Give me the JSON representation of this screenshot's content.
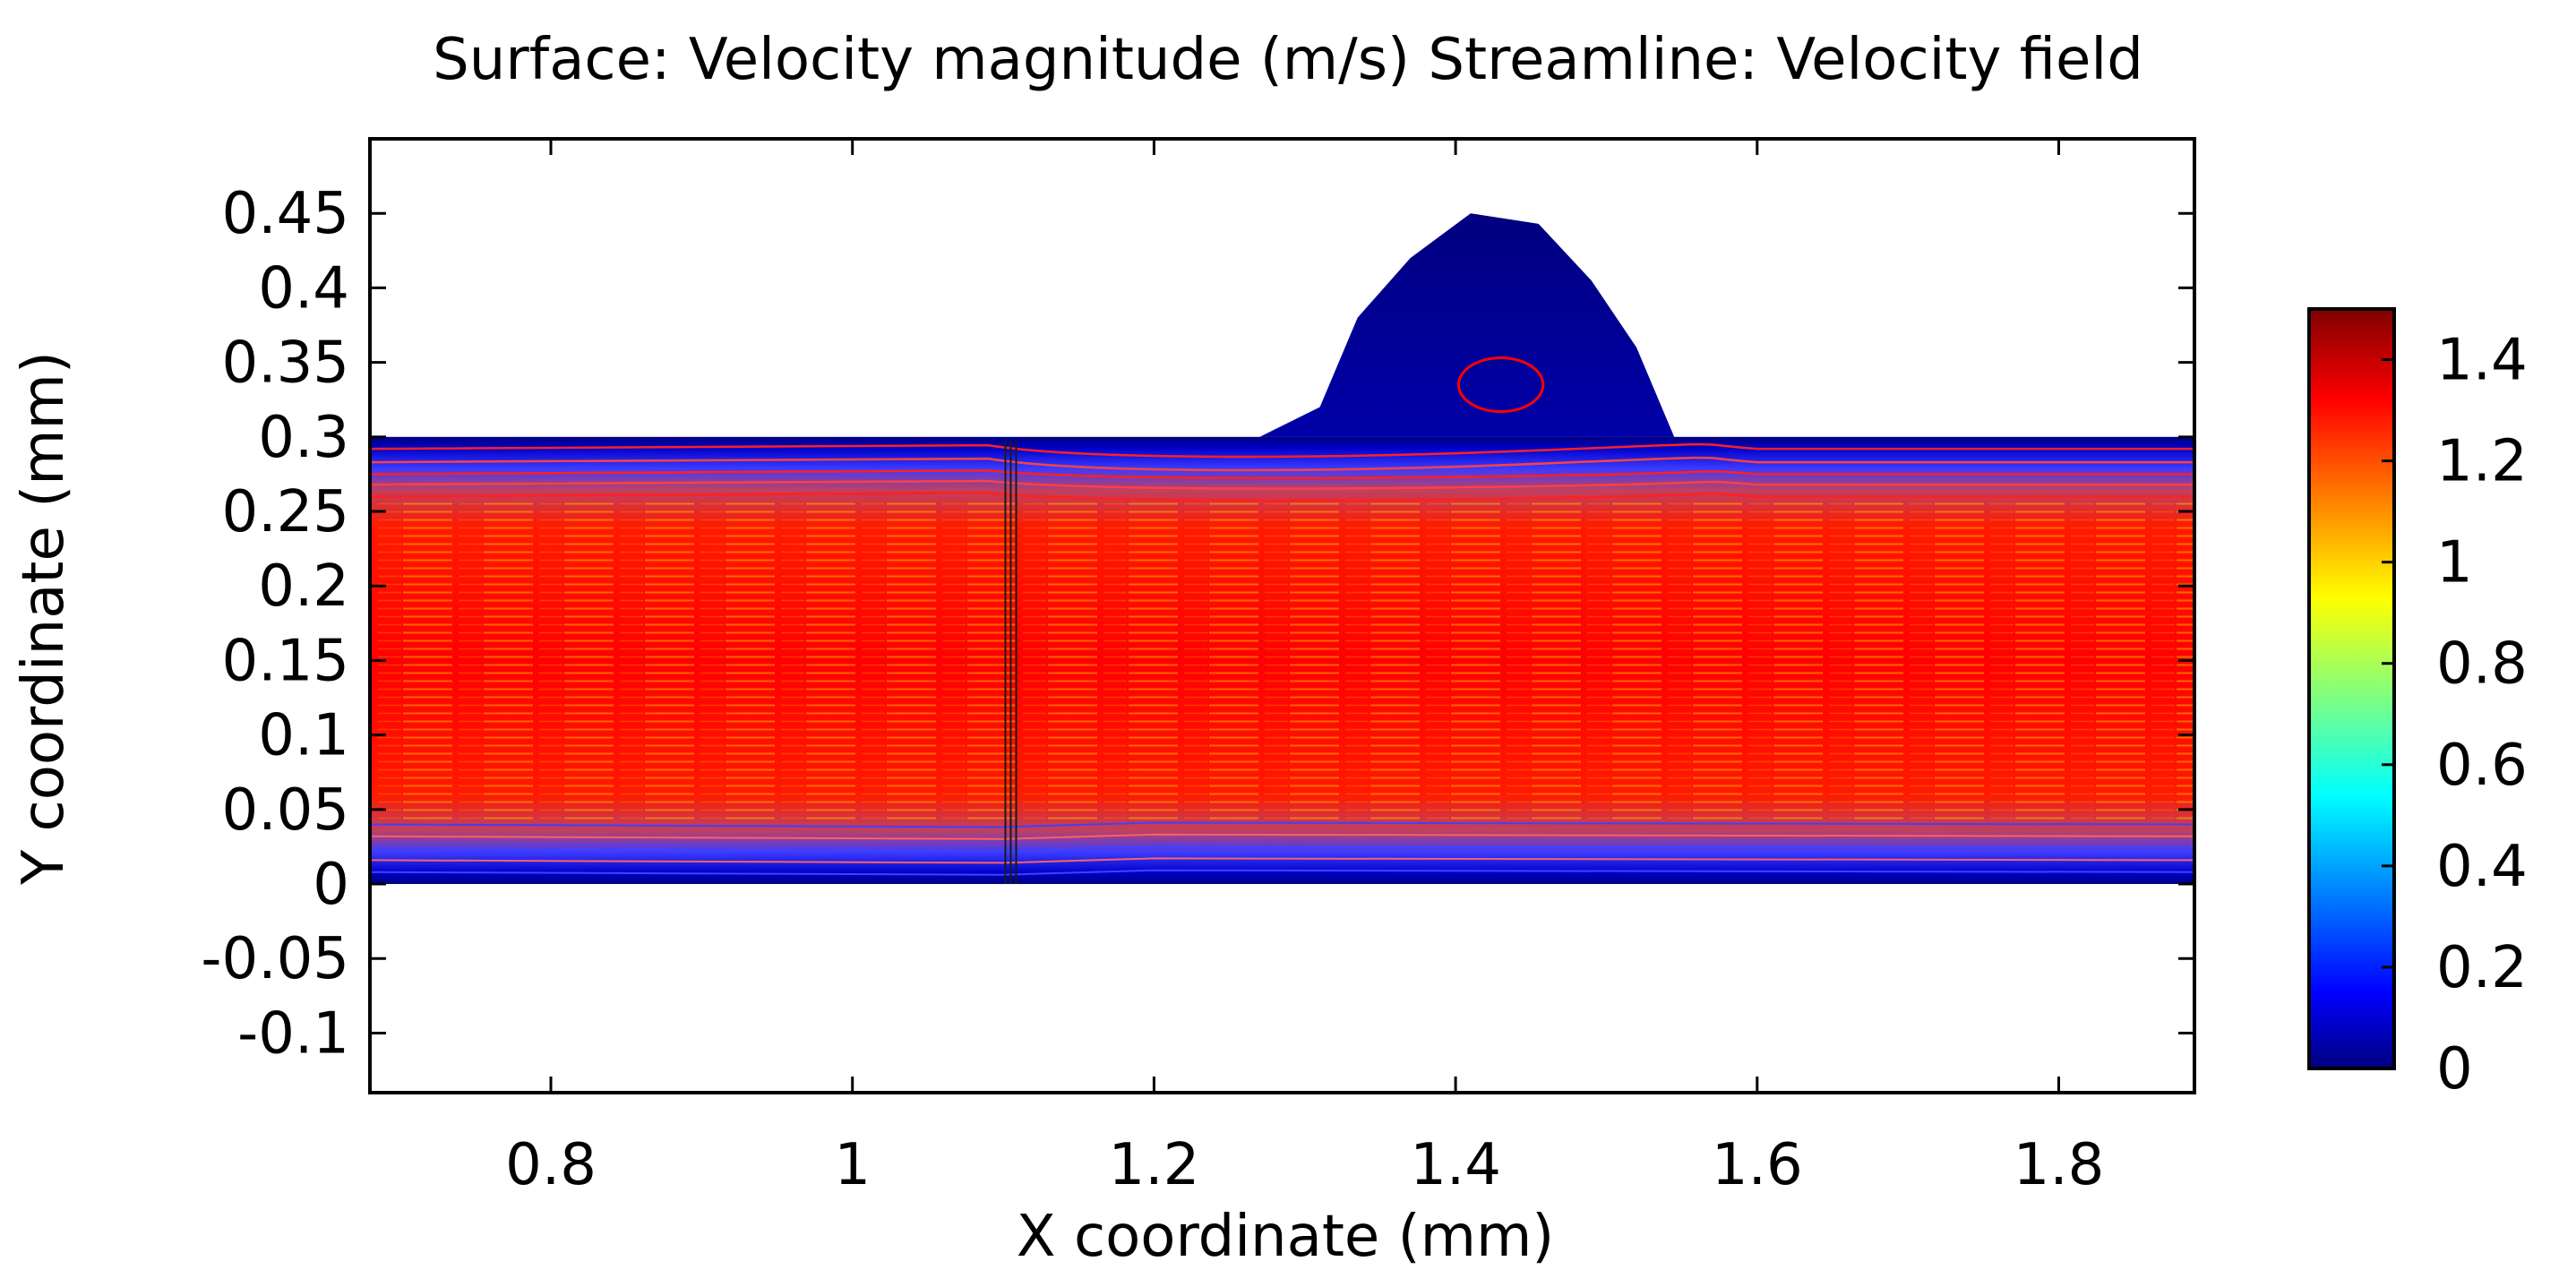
{
  "chart_data": {
    "type": "heatmap",
    "title": "Surface: Velocity magnitude (m/s)  Streamline: Velocity field",
    "xlabel": "X coordinate (mm)",
    "ylabel": "Y coordinate (mm)",
    "xlim": [
      0.68,
      1.89
    ],
    "ylim": [
      -0.14,
      0.5
    ],
    "xticks": [
      0.8,
      1,
      1.2,
      1.4,
      1.6,
      1.8
    ],
    "xtick_labels": [
      "0.8",
      "1",
      "1.2",
      "1.4",
      "1.6",
      "1.8"
    ],
    "yticks": [
      0.45,
      0.4,
      0.35,
      0.3,
      0.25,
      0.2,
      0.15,
      0.1,
      0.05,
      0,
      -0.05,
      -0.1
    ],
    "ytick_labels": [
      "0.45",
      "0.4",
      "0.35",
      "0.3",
      "0.25",
      "0.2",
      "0.15",
      "0.1",
      "0.05",
      "0",
      "-0.05",
      "-0.1"
    ],
    "channel": {
      "x_range": [
        0.68,
        1.89
      ],
      "y_range": [
        0,
        0.3
      ]
    },
    "bump_outline": [
      [
        1.27,
        0.3
      ],
      [
        1.31,
        0.32
      ],
      [
        1.335,
        0.38
      ],
      [
        1.37,
        0.42
      ],
      [
        1.41,
        0.45
      ],
      [
        1.455,
        0.443
      ],
      [
        1.49,
        0.405
      ],
      [
        1.52,
        0.36
      ],
      [
        1.545,
        0.3
      ]
    ],
    "vortex": {
      "center": [
        1.43,
        0.335
      ],
      "radius_x": 0.028,
      "radius_y": 0.018
    },
    "wall_x": 1.105,
    "colorbar": {
      "min": 0,
      "max": 1.5,
      "ticks": [
        1.4,
        1.2,
        1,
        0.8,
        0.6,
        0.4,
        0.2,
        0
      ],
      "tick_labels": [
        "1.4",
        "1.2",
        "1",
        "0.8",
        "0.6",
        "0.4",
        "0.2",
        "0"
      ],
      "colormap": [
        "#00007f",
        "#0000ff",
        "#00ffff",
        "#ffff00",
        "#ff0000",
        "#7f0000"
      ]
    }
  }
}
